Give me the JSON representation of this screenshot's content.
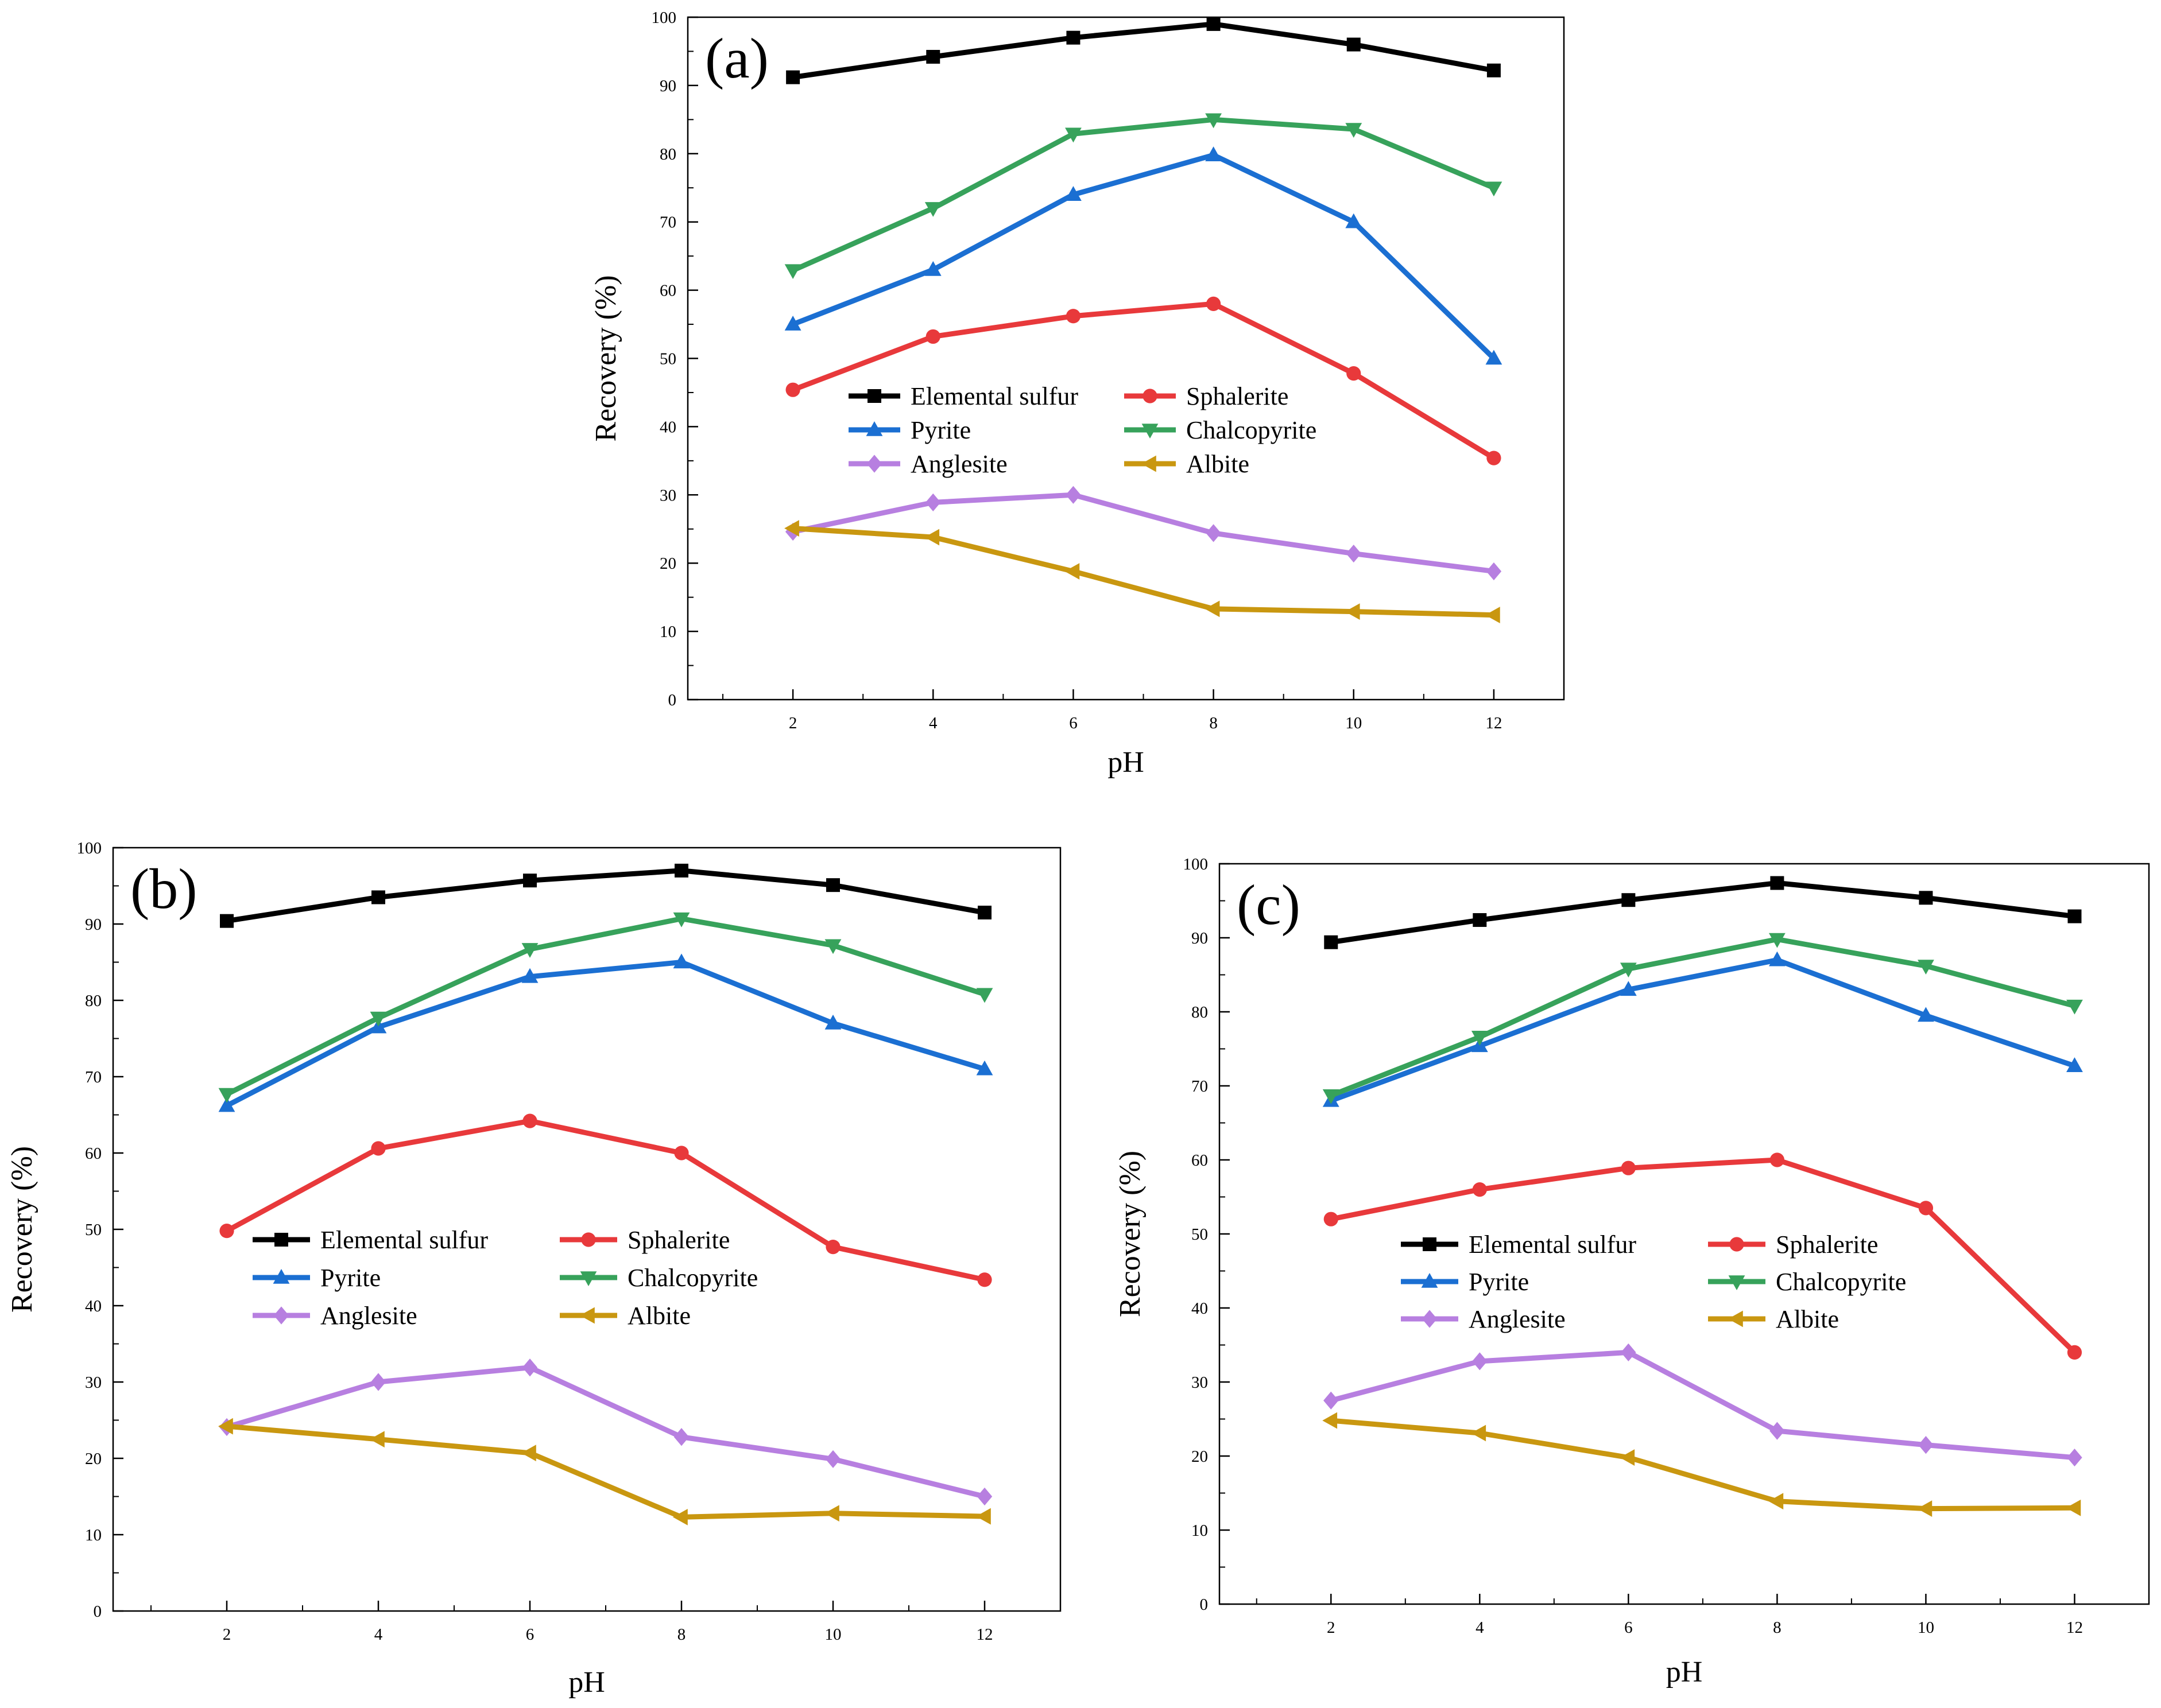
{
  "chart_data": [
    {
      "type": "line",
      "panel_label": "(a)",
      "xlabel": "pH",
      "ylabel": "Recovery (%)",
      "xlim": [
        0.5,
        13.0
      ],
      "ylim": [
        0,
        100
      ],
      "x_ticks": [
        2,
        4,
        6,
        8,
        10,
        12
      ],
      "y_ticks": [
        0,
        10,
        20,
        30,
        40,
        50,
        60,
        70,
        80,
        90,
        100
      ],
      "x": [
        2,
        4,
        6,
        8,
        10,
        12
      ],
      "series": [
        {
          "name": "Elemental sulfur",
          "color": "#000000",
          "marker": "square",
          "values": [
            91.2,
            94.2,
            97.0,
            99.0,
            96.0,
            92.2
          ]
        },
        {
          "name": "Sphalerite",
          "color": "#E8393B",
          "marker": "circle",
          "values": [
            45.4,
            53.2,
            56.2,
            58.0,
            47.8,
            35.4
          ]
        },
        {
          "name": "Pyrite",
          "color": "#1B6FD2",
          "marker": "triangle-up",
          "values": [
            55.0,
            63.0,
            74.0,
            79.8,
            70.0,
            50.0
          ]
        },
        {
          "name": "Chalcopyrite",
          "color": "#37A25B",
          "marker": "triangle-down",
          "values": [
            62.9,
            72.0,
            82.9,
            85.0,
            83.6,
            75.0
          ]
        },
        {
          "name": "Anglesite",
          "color": "#B77FE0",
          "marker": "diamond",
          "values": [
            24.6,
            28.9,
            30.0,
            24.4,
            21.4,
            18.8
          ]
        },
        {
          "name": "Albite",
          "color": "#C99710",
          "marker": "triangle-left",
          "values": [
            25.1,
            23.8,
            18.8,
            13.3,
            12.9,
            12.4
          ]
        }
      ]
    },
    {
      "type": "line",
      "panel_label": "(b)",
      "xlabel": "pH",
      "ylabel": "Recovery (%)",
      "xlim": [
        0.5,
        13.0
      ],
      "ylim": [
        0,
        100
      ],
      "x_ticks": [
        2,
        4,
        6,
        8,
        10,
        12
      ],
      "y_ticks": [
        0,
        10,
        20,
        30,
        40,
        50,
        60,
        70,
        80,
        90,
        100
      ],
      "x": [
        2,
        4,
        6,
        8,
        10,
        12
      ],
      "series": [
        {
          "name": "Elemental sulfur",
          "color": "#000000",
          "marker": "square",
          "values": [
            90.4,
            93.5,
            95.7,
            97.0,
            95.1,
            91.5
          ]
        },
        {
          "name": "Sphalerite",
          "color": "#E8393B",
          "marker": "circle",
          "values": [
            49.8,
            60.6,
            64.2,
            60.0,
            47.7,
            43.4
          ]
        },
        {
          "name": "Pyrite",
          "color": "#1B6FD2",
          "marker": "triangle-up",
          "values": [
            66.2,
            76.5,
            83.1,
            85.0,
            77.0,
            71.0
          ]
        },
        {
          "name": "Chalcopyrite",
          "color": "#37A25B",
          "marker": "triangle-down",
          "values": [
            67.7,
            77.7,
            86.7,
            90.7,
            87.2,
            80.8
          ]
        },
        {
          "name": "Anglesite",
          "color": "#B77FE0",
          "marker": "diamond",
          "values": [
            24.1,
            30.0,
            31.9,
            22.8,
            19.9,
            15.0
          ]
        },
        {
          "name": "Albite",
          "color": "#C99710",
          "marker": "triangle-left",
          "values": [
            24.2,
            22.5,
            20.7,
            12.3,
            12.8,
            12.4
          ]
        }
      ]
    },
    {
      "type": "line",
      "panel_label": "(c)",
      "xlabel": "pH",
      "ylabel": "Recovery (%)",
      "xlim": [
        0.5,
        13.0
      ],
      "ylim": [
        0,
        100
      ],
      "x_ticks": [
        2,
        4,
        6,
        8,
        10,
        12
      ],
      "y_ticks": [
        0,
        10,
        20,
        30,
        40,
        50,
        60,
        70,
        80,
        90,
        100
      ],
      "x": [
        2,
        4,
        6,
        8,
        10,
        12
      ],
      "series": [
        {
          "name": "Elemental sulfur",
          "color": "#000000",
          "marker": "square",
          "values": [
            89.4,
            92.4,
            95.1,
            97.4,
            95.4,
            92.9
          ]
        },
        {
          "name": "Sphalerite",
          "color": "#E8393B",
          "marker": "circle",
          "values": [
            52.0,
            56.0,
            58.9,
            60.0,
            53.5,
            34.0
          ]
        },
        {
          "name": "Pyrite",
          "color": "#1B6FD2",
          "marker": "triangle-up",
          "values": [
            68.0,
            75.4,
            83.0,
            87.0,
            79.5,
            72.7
          ]
        },
        {
          "name": "Chalcopyrite",
          "color": "#37A25B",
          "marker": "triangle-down",
          "values": [
            68.7,
            76.6,
            85.8,
            89.8,
            86.2,
            80.8
          ]
        },
        {
          "name": "Anglesite",
          "color": "#B77FE0",
          "marker": "diamond",
          "values": [
            27.5,
            32.8,
            34.0,
            23.4,
            21.5,
            19.8
          ]
        },
        {
          "name": "Albite",
          "color": "#C99710",
          "marker": "triangle-left",
          "values": [
            24.8,
            23.1,
            19.8,
            13.9,
            12.9,
            13.0
          ]
        }
      ]
    }
  ]
}
